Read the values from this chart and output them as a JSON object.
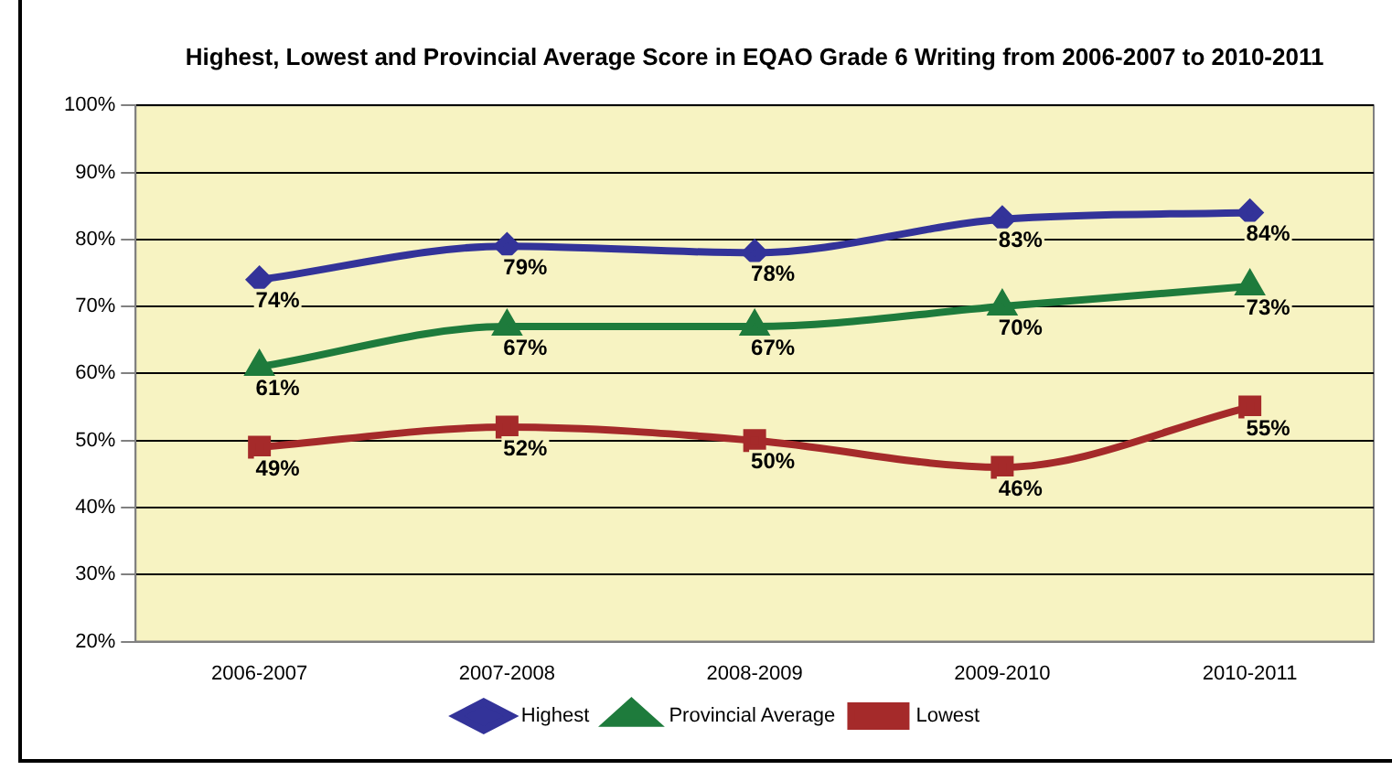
{
  "chart_data": {
    "type": "line",
    "title": "Highest, Lowest and Provincial Average Score in EQAO Grade 6 Writing from 2006-2007 to 2010-2011",
    "categories": [
      "2006-2007",
      "2007-2008",
      "2008-2009",
      "2009-2010",
      "2010-2011"
    ],
    "series": [
      {
        "name": "Highest",
        "color": "#333399",
        "marker": "diamond",
        "values": [
          74,
          79,
          78,
          83,
          84
        ],
        "value_labels": [
          "74%",
          "79%",
          "78%",
          "83%",
          "84%"
        ]
      },
      {
        "name": "Provincial Average",
        "color": "#1e7b3c",
        "marker": "triangle",
        "values": [
          61,
          67,
          67,
          70,
          73
        ],
        "value_labels": [
          "61%",
          "67%",
          "67%",
          "70%",
          "73%"
        ]
      },
      {
        "name": "Lowest",
        "color": "#a52a2a",
        "marker": "square",
        "values": [
          49,
          52,
          50,
          46,
          55
        ],
        "value_labels": [
          "49%",
          "52%",
          "50%",
          "46%",
          "55%"
        ]
      }
    ],
    "ylim": [
      20,
      100
    ],
    "yticks": [
      {
        "value": 20,
        "label": "20%"
      },
      {
        "value": 30,
        "label": "30%"
      },
      {
        "value": 40,
        "label": "40%"
      },
      {
        "value": 50,
        "label": "50%"
      },
      {
        "value": 60,
        "label": "60%"
      },
      {
        "value": 70,
        "label": "70%"
      },
      {
        "value": 80,
        "label": "80%"
      },
      {
        "value": 90,
        "label": "90%"
      },
      {
        "value": 100,
        "label": "100%"
      }
    ],
    "grid": "y",
    "legend": "bottom"
  }
}
